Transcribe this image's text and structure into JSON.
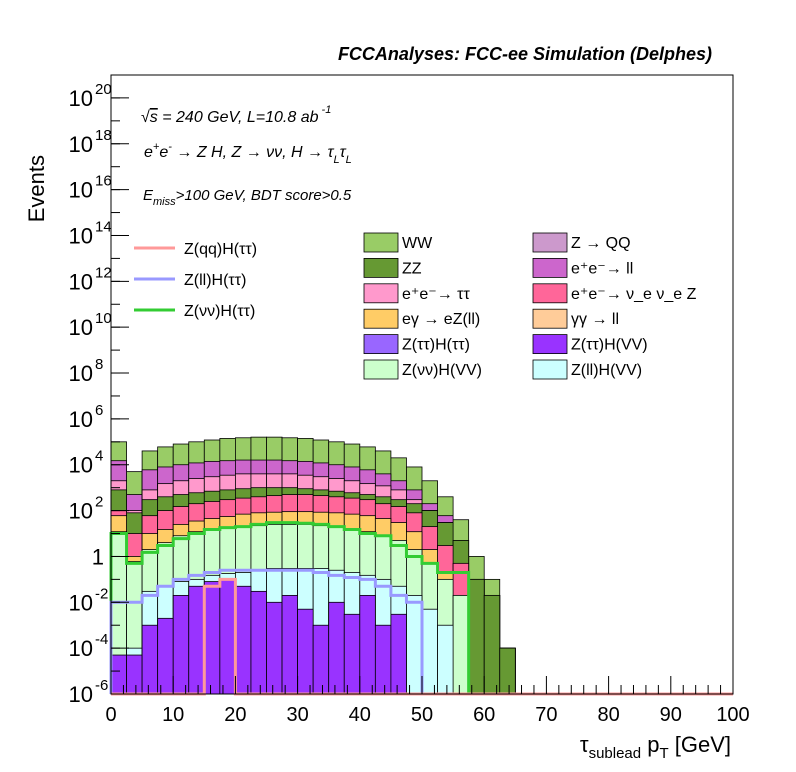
{
  "chart_data": {
    "type": "bar",
    "stacked": true,
    "log_y": true,
    "title": "FCCAnalyses: FCC-ee Simulation (Delphes)",
    "xlabel": "τ_sublead p_T [GeV]",
    "ylabel": "Events",
    "xlim": [
      0,
      100
    ],
    "ylim": [
      1e-06,
      1e+21
    ],
    "x_ticks": [
      "0",
      "10",
      "20",
      "30",
      "40",
      "50",
      "60",
      "70",
      "80",
      "90",
      "100"
    ],
    "y_ticks": [
      {
        "base": "10",
        "exp": "20"
      },
      {
        "base": "10",
        "exp": "18"
      },
      {
        "base": "10",
        "exp": "16"
      },
      {
        "base": "10",
        "exp": "14"
      },
      {
        "base": "10",
        "exp": "12"
      },
      {
        "base": "10",
        "exp": "10"
      },
      {
        "base": "10",
        "exp": "8"
      },
      {
        "base": "10",
        "exp": "6"
      },
      {
        "base": "10",
        "exp": "4"
      },
      {
        "base": "10",
        "exp": "2"
      },
      {
        "base": "1",
        "exp": ""
      },
      {
        "base": "10",
        "exp": "-2"
      },
      {
        "base": "10",
        "exp": "-4"
      },
      {
        "base": "10",
        "exp": "-6"
      }
    ],
    "annotations": [
      "√s = 240 GeV, L=10.8 ab⁻¹",
      "e⁺e⁻ → Z H, Z → νν, H → τ_L τ_L",
      "E_miss>100 GeV, BDT score>0.5"
    ],
    "bin_width": 2.5,
    "stack_totals": [
      {
        "name": "Z(ll)H(VV)",
        "color": "#ccffff",
        "values": [
          0,
          0.0001,
          0.03,
          0.05,
          0.08,
          0.1,
          0.15,
          0.18,
          0.2,
          0.25,
          0.3,
          0.3,
          0.3,
          0.3,
          0.25,
          0.2,
          0.15,
          0.1,
          0.05,
          0.02,
          0.005,
          0.001,
          0,
          0,
          0,
          0,
          0,
          0,
          0,
          0,
          0,
          0,
          0,
          0,
          0,
          0,
          0,
          0,
          0,
          0
        ]
      },
      {
        "name": "Z(νν)H(VV)",
        "color": "#ccffcc",
        "values": [
          12,
          0.6,
          2,
          4,
          8,
          12,
          15,
          18,
          20,
          22,
          25,
          25,
          25,
          22,
          20,
          15,
          12,
          8,
          5,
          2,
          0.5,
          0.1,
          0.02,
          0,
          0,
          0,
          0,
          0,
          0,
          0,
          0,
          0,
          0,
          0,
          0,
          0,
          0,
          0,
          0,
          0
        ]
      },
      {
        "name": "eγ → eZ(ll)",
        "color": "#ffcc66",
        "values": [
          60,
          1,
          10,
          15,
          25,
          35,
          45,
          55,
          70,
          80,
          85,
          90,
          90,
          85,
          80,
          70,
          60,
          45,
          30,
          12,
          2,
          0.2,
          0.02,
          0,
          0,
          0,
          0,
          0,
          0,
          0,
          0,
          0,
          0,
          0,
          0,
          0,
          0,
          0,
          0,
          0
        ]
      },
      {
        "name": "e⁺e⁻ → ν_e ν_e Z",
        "color": "#ff6699",
        "values": [
          100,
          10,
          60,
          100,
          150,
          200,
          250,
          300,
          350,
          400,
          450,
          500,
          500,
          450,
          400,
          350,
          300,
          200,
          150,
          80,
          20,
          3,
          0.5,
          0,
          0,
          0,
          0,
          0,
          0,
          0,
          0,
          0,
          0,
          0,
          0,
          0,
          0,
          0,
          0,
          0
        ]
      },
      {
        "name": "ZZ",
        "color": "#669933",
        "values": [
          800,
          80,
          300,
          400,
          500,
          600,
          700,
          800,
          900,
          1000,
          1000,
          1000,
          900,
          800,
          700,
          600,
          500,
          400,
          300,
          200,
          100,
          30,
          5,
          0.1,
          0.02,
          0.0001,
          0,
          0,
          0,
          0,
          0,
          0,
          0,
          0,
          0,
          0,
          0,
          0,
          0,
          0
        ]
      },
      {
        "name": "e⁺e⁻ → ττ",
        "color": "#ff99cc",
        "values": [
          2000,
          100,
          800,
          1500,
          2000,
          2500,
          3000,
          3500,
          4000,
          4000,
          4000,
          4000,
          3500,
          3000,
          2500,
          2000,
          1500,
          1200,
          800,
          300,
          100,
          30,
          5,
          0.1,
          0.02,
          0.0001,
          0,
          0,
          0,
          0,
          0,
          0,
          0,
          0,
          0,
          0,
          0,
          0,
          0,
          0
        ]
      },
      {
        "name": "e⁺e⁻ → ll",
        "color": "#cc66cc",
        "values": [
          15000,
          500,
          6000,
          8000,
          10000,
          12000,
          14000,
          15000,
          16000,
          16000,
          16000,
          15000,
          14000,
          12000,
          10000,
          8000,
          6000,
          4000,
          2000,
          800,
          200,
          60,
          5,
          0.1,
          0.02,
          0.0001,
          0,
          0,
          0,
          0,
          0,
          0,
          0,
          0,
          0,
          0,
          0,
          0,
          0,
          0
        ]
      },
      {
        "name": "WW",
        "color": "#99cc66",
        "values": [
          100000,
          5000,
          40000,
          60000,
          80000,
          100000,
          120000,
          140000,
          150000,
          160000,
          160000,
          150000,
          140000,
          120000,
          100000,
          80000,
          60000,
          40000,
          20000,
          8000,
          2000,
          400,
          40,
          1,
          0.1,
          0.0001,
          0,
          0,
          0,
          0,
          0,
          0,
          0,
          0,
          0,
          0,
          0,
          0,
          0,
          0
        ]
      }
    ],
    "overlay_series": [
      {
        "name": "Z(ττ)H(VV)",
        "color": "#9933ff",
        "values": [
          5e-05,
          5e-05,
          0.001,
          0.002,
          0.02,
          0.05,
          0.08,
          0.1,
          0.05,
          0.03,
          0.01,
          0.02,
          0.005,
          0.001,
          0.01,
          0.003,
          0.02,
          0.001,
          0.003,
          0,
          0,
          0,
          0,
          0,
          0,
          0,
          0,
          0,
          0,
          0,
          0,
          0,
          0,
          0,
          0,
          0,
          0,
          0,
          0,
          0
        ]
      }
    ],
    "line_series": [
      {
        "name": "Z(νν)H(ττ)",
        "color": "#33cc33",
        "values": [
          10,
          0.5,
          1.5,
          3,
          6,
          10,
          15,
          18,
          20,
          25,
          30,
          30,
          28,
          25,
          20,
          15,
          10,
          8,
          3,
          1,
          0.5,
          0.2,
          0.2,
          1e-06,
          1e-06,
          1e-06,
          1e-06,
          1e-06,
          1e-06,
          1e-06,
          1e-06,
          1e-06,
          1e-06,
          1e-06,
          1e-06,
          1e-06,
          1e-06,
          1e-06,
          1e-06,
          1e-06
        ]
      },
      {
        "name": "Z(ll)H(ττ)",
        "color": "#9999ff",
        "values": [
          0.01,
          0.01,
          0.02,
          0.05,
          0.1,
          0.15,
          0.2,
          0.25,
          0.25,
          0.25,
          0.25,
          0.25,
          0.25,
          0.2,
          0.15,
          0.12,
          0.1,
          0.05,
          0.02,
          0.01,
          1e-06,
          1e-06,
          1e-06,
          1e-06,
          1e-06,
          1e-06,
          1e-06,
          1e-06,
          1e-06,
          1e-06,
          1e-06,
          1e-06,
          1e-06,
          1e-06,
          1e-06,
          1e-06,
          1e-06,
          1e-06,
          1e-06,
          1e-06
        ]
      },
      {
        "name": "Z(qq)H(ττ)",
        "color": "#ff9999",
        "values": [
          1e-06,
          1e-06,
          1e-06,
          1e-06,
          1e-06,
          1e-06,
          0.05,
          0.1,
          1e-06,
          1e-06,
          1e-06,
          1e-06,
          1e-06,
          1e-06,
          1e-06,
          1e-06,
          1e-06,
          1e-06,
          1e-06,
          1e-06,
          1e-06,
          1e-06,
          1e-06,
          1e-06,
          1e-06,
          1e-06,
          1e-06,
          1e-06,
          1e-06,
          1e-06,
          1e-06,
          1e-06,
          1e-06,
          1e-06,
          1e-06,
          1e-06,
          1e-06,
          1e-06,
          1e-06,
          1e-06
        ]
      }
    ],
    "legend_lines": [
      {
        "label": "Z(qq)H(ττ)",
        "color": "#ff9999"
      },
      {
        "label": "Z(ll)H(ττ)",
        "color": "#9999ff"
      },
      {
        "label": "Z(νν)H(ττ)",
        "color": "#33cc33"
      }
    ],
    "legend_col1": [
      {
        "label": "WW",
        "color": "#99cc66"
      },
      {
        "label": "ZZ",
        "color": "#669933"
      },
      {
        "label": "e⁺e⁻→ ττ",
        "color": "#ff99cc"
      },
      {
        "label": "eγ → eZ(ll)",
        "color": "#ffcc66"
      },
      {
        "label": "Z(ττ)H(ττ)",
        "color": "#9966ff"
      },
      {
        "label": "Z(νν)H(VV)",
        "color": "#ccffcc"
      }
    ],
    "legend_col2": [
      {
        "label": "Z → QQ",
        "color": "#cc99cc"
      },
      {
        "label": "e⁺e⁻→ ll",
        "color": "#cc66cc"
      },
      {
        "label": "e⁺e⁻→ ν_e ν_e Z",
        "color": "#ff6699"
      },
      {
        "label": "γγ → ll",
        "color": "#ffcc99"
      },
      {
        "label": "Z(ττ)H(VV)",
        "color": "#9933ff"
      },
      {
        "label": "Z(ll)H(VV)",
        "color": "#ccffff"
      }
    ]
  }
}
